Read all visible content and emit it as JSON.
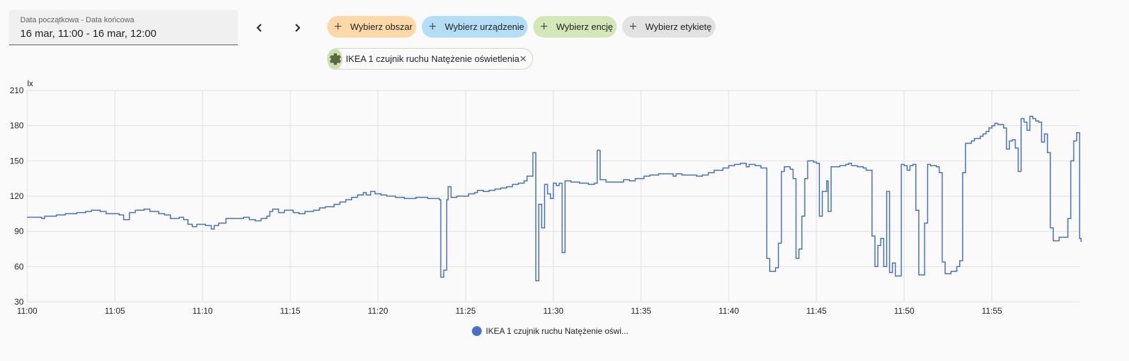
{
  "date_picker": {
    "label": "Data początkowa - Data końcowa",
    "value": "16 mar, 11:00 - 16 mar, 12:00"
  },
  "nav": {
    "prev_icon": "chevron-left-icon",
    "next_icon": "chevron-right-icon"
  },
  "chips": {
    "area": "Wybierz obszar",
    "device": "Wybierz urządzenie",
    "entity": "Wybierz encję",
    "label": "Wybierz etykietę",
    "plus": "+"
  },
  "selected_entity": {
    "name": "IKEA 1 czujnik ruchu Natężenie oświetlenia",
    "icon": "gear-icon",
    "close": "✕"
  },
  "colors": {
    "series": "#4470cc",
    "grid": "#e0e0e0"
  },
  "chart_data": {
    "type": "line",
    "step": true,
    "title": "",
    "xlabel": "",
    "ylabel": "lx",
    "xlim": [
      "11:00",
      "12:00"
    ],
    "ylim": [
      30,
      210
    ],
    "grid": true,
    "legend_position": "bottom-center",
    "x_ticks": [
      "11:00",
      "11:05",
      "11:10",
      "11:15",
      "11:20",
      "11:25",
      "11:30",
      "11:35",
      "11:40",
      "11:45",
      "11:50",
      "11:55"
    ],
    "y_ticks": [
      30,
      60,
      90,
      120,
      150,
      180,
      210
    ],
    "series": [
      {
        "name": "IKEA 1 czujnik ruchu Natężenie oświ...",
        "color": "#4470cc",
        "points": [
          [
            "11:00:00",
            102
          ],
          [
            "11:00:50",
            101
          ],
          [
            "11:01:00",
            103
          ],
          [
            "11:01:40",
            104
          ],
          [
            "11:02:10",
            105
          ],
          [
            "11:02:50",
            106
          ],
          [
            "11:03:20",
            107
          ],
          [
            "11:03:40",
            108
          ],
          [
            "11:04:10",
            107
          ],
          [
            "11:04:30",
            105
          ],
          [
            "11:05:15",
            104
          ],
          [
            "11:05:30",
            100
          ],
          [
            "11:05:50",
            106
          ],
          [
            "11:06:10",
            108
          ],
          [
            "11:06:40",
            109
          ],
          [
            "11:07:00",
            107
          ],
          [
            "11:07:30",
            105
          ],
          [
            "11:07:50",
            104
          ],
          [
            "11:08:10",
            101
          ],
          [
            "11:08:40",
            102
          ],
          [
            "11:08:55",
            100
          ],
          [
            "11:09:10",
            96
          ],
          [
            "11:09:25",
            94
          ],
          [
            "11:09:40",
            96
          ],
          [
            "11:10:10",
            95
          ],
          [
            "11:10:30",
            92
          ],
          [
            "11:10:40",
            95
          ],
          [
            "11:10:55",
            97
          ],
          [
            "11:11:20",
            101
          ],
          [
            "11:11:40",
            101
          ],
          [
            "11:12:20",
            102
          ],
          [
            "11:12:40",
            100
          ],
          [
            "11:13:00",
            99
          ],
          [
            "11:13:20",
            101
          ],
          [
            "11:13:40",
            103
          ],
          [
            "11:13:50",
            107
          ],
          [
            "11:14:00",
            109
          ],
          [
            "11:14:20",
            106
          ],
          [
            "11:14:40",
            108
          ],
          [
            "11:15:10",
            106
          ],
          [
            "11:15:30",
            105
          ],
          [
            "11:15:50",
            107
          ],
          [
            "11:16:20",
            108
          ],
          [
            "11:16:40",
            110
          ],
          [
            "11:17:00",
            111
          ],
          [
            "11:17:30",
            113
          ],
          [
            "11:17:50",
            115
          ],
          [
            "11:18:10",
            117
          ],
          [
            "11:18:30",
            119
          ],
          [
            "11:18:50",
            121
          ],
          [
            "11:19:10",
            123
          ],
          [
            "11:19:20",
            121
          ],
          [
            "11:19:35",
            124
          ],
          [
            "11:19:50",
            122
          ],
          [
            "11:20:10",
            121
          ],
          [
            "11:20:30",
            120
          ],
          [
            "11:21:00",
            119
          ],
          [
            "11:21:30",
            118
          ],
          [
            "11:22:10",
            119
          ],
          [
            "11:22:50",
            118
          ],
          [
            "11:23:30",
            117
          ],
          [
            "11:23:35",
            51
          ],
          [
            "11:23:45",
            57
          ],
          [
            "11:23:55",
            117
          ],
          [
            "11:24:00",
            128
          ],
          [
            "11:24:10",
            119
          ],
          [
            "11:24:30",
            120
          ],
          [
            "11:25:00",
            120
          ],
          [
            "11:25:10",
            122
          ],
          [
            "11:25:30",
            123
          ],
          [
            "11:25:40",
            125
          ],
          [
            "11:26:00",
            124
          ],
          [
            "11:26:20",
            125
          ],
          [
            "11:26:40",
            126
          ],
          [
            "11:27:00",
            127
          ],
          [
            "11:27:20",
            128
          ],
          [
            "11:27:40",
            130
          ],
          [
            "11:28:00",
            131
          ],
          [
            "11:28:20",
            133
          ],
          [
            "11:28:30",
            137
          ],
          [
            "11:28:50",
            157
          ],
          [
            "11:29:00",
            48
          ],
          [
            "11:29:10",
            113
          ],
          [
            "11:29:20",
            93
          ],
          [
            "11:29:30",
            130
          ],
          [
            "11:29:40",
            122
          ],
          [
            "11:29:50",
            118
          ],
          [
            "11:30:00",
            131
          ],
          [
            "11:30:10",
            129
          ],
          [
            "11:30:20",
            131
          ],
          [
            "11:30:30",
            72
          ],
          [
            "11:30:40",
            133
          ],
          [
            "11:31:00",
            132
          ],
          [
            "11:31:30",
            131
          ],
          [
            "11:32:00",
            130
          ],
          [
            "11:32:20",
            131
          ],
          [
            "11:32:30",
            159
          ],
          [
            "11:32:40",
            134
          ],
          [
            "11:33:00",
            132
          ],
          [
            "11:33:30",
            132
          ],
          [
            "11:34:00",
            134
          ],
          [
            "11:34:20",
            133
          ],
          [
            "11:34:40",
            135
          ],
          [
            "11:35:10",
            137
          ],
          [
            "11:35:30",
            138
          ],
          [
            "11:36:00",
            139
          ],
          [
            "11:36:40",
            139
          ],
          [
            "11:36:50",
            137
          ],
          [
            "11:37:00",
            139
          ],
          [
            "11:37:20",
            138
          ],
          [
            "11:37:50",
            138
          ],
          [
            "11:38:10",
            137
          ],
          [
            "11:38:30",
            138
          ],
          [
            "11:38:50",
            140
          ],
          [
            "11:39:10",
            142
          ],
          [
            "11:39:40",
            144
          ],
          [
            "11:40:00",
            146
          ],
          [
            "11:40:20",
            147
          ],
          [
            "11:40:40",
            148
          ],
          [
            "11:41:00",
            145
          ],
          [
            "11:41:10",
            147
          ],
          [
            "11:41:30",
            146
          ],
          [
            "11:41:50",
            144
          ],
          [
            "11:42:10",
            67
          ],
          [
            "11:42:20",
            56
          ],
          [
            "11:42:40",
            59
          ],
          [
            "11:42:50",
            80
          ],
          [
            "11:43:00",
            141
          ],
          [
            "11:43:10",
            145
          ],
          [
            "11:43:30",
            143
          ],
          [
            "11:43:40",
            135
          ],
          [
            "11:43:50",
            67
          ],
          [
            "11:44:00",
            75
          ],
          [
            "11:44:10",
            103
          ],
          [
            "11:44:20",
            135
          ],
          [
            "11:44:30",
            150
          ],
          [
            "11:44:50",
            149
          ],
          [
            "11:45:00",
            148
          ],
          [
            "11:45:10",
            103
          ],
          [
            "11:45:20",
            124
          ],
          [
            "11:45:35",
            133
          ],
          [
            "11:45:40",
            107
          ],
          [
            "11:45:50",
            145
          ],
          [
            "11:46:20",
            146
          ],
          [
            "11:46:40",
            147
          ],
          [
            "11:46:50",
            148
          ],
          [
            "11:47:00",
            146
          ],
          [
            "11:47:20",
            145
          ],
          [
            "11:47:40",
            144
          ],
          [
            "11:47:50",
            142
          ],
          [
            "11:48:10",
            86
          ],
          [
            "11:48:20",
            60
          ],
          [
            "11:48:30",
            78
          ],
          [
            "11:48:40",
            84
          ],
          [
            "11:48:50",
            60
          ],
          [
            "11:49:00",
            124
          ],
          [
            "11:49:10",
            55
          ],
          [
            "11:49:20",
            63
          ],
          [
            "11:49:30",
            52
          ],
          [
            "11:49:50",
            147
          ],
          [
            "11:50:00",
            146
          ],
          [
            "11:50:10",
            142
          ],
          [
            "11:50:20",
            146
          ],
          [
            "11:50:30",
            147
          ],
          [
            "11:50:40",
            108
          ],
          [
            "11:50:50",
            53
          ],
          [
            "11:51:10",
            97
          ],
          [
            "11:51:20",
            147
          ],
          [
            "11:51:30",
            146
          ],
          [
            "11:51:50",
            145
          ],
          [
            "11:52:00",
            140
          ],
          [
            "11:52:10",
            64
          ],
          [
            "11:52:20",
            54
          ],
          [
            "11:52:40",
            56
          ],
          [
            "11:53:00",
            60
          ],
          [
            "11:53:10",
            65
          ],
          [
            "11:53:20",
            140
          ],
          [
            "11:53:30",
            165
          ],
          [
            "11:53:50",
            167
          ],
          [
            "11:54:00",
            169
          ],
          [
            "11:54:20",
            171
          ],
          [
            "11:54:30",
            173
          ],
          [
            "11:54:40",
            175
          ],
          [
            "11:54:50",
            178
          ],
          [
            "11:55:00",
            180
          ],
          [
            "11:55:10",
            182
          ],
          [
            "11:55:20",
            181
          ],
          [
            "11:55:40",
            178
          ],
          [
            "11:55:50",
            160
          ],
          [
            "11:56:00",
            167
          ],
          [
            "11:56:10",
            168
          ],
          [
            "11:56:20",
            161
          ],
          [
            "11:56:30",
            141
          ],
          [
            "11:56:40",
            186
          ],
          [
            "11:56:50",
            183
          ],
          [
            "11:57:00",
            176
          ],
          [
            "11:57:10",
            188
          ],
          [
            "11:57:20",
            186
          ],
          [
            "11:57:30",
            184
          ],
          [
            "11:57:40",
            183
          ],
          [
            "11:57:50",
            166
          ],
          [
            "11:58:00",
            173
          ],
          [
            "11:58:10",
            157
          ],
          [
            "11:58:20",
            93
          ],
          [
            "11:58:30",
            82
          ],
          [
            "11:58:50",
            85
          ],
          [
            "11:59:20",
            101
          ],
          [
            "11:59:30",
            150
          ],
          [
            "11:59:40",
            167
          ],
          [
            "11:59:50",
            174
          ],
          [
            "12:00:00",
            84
          ],
          [
            "12:00:05",
            81
          ]
        ]
      }
    ]
  }
}
